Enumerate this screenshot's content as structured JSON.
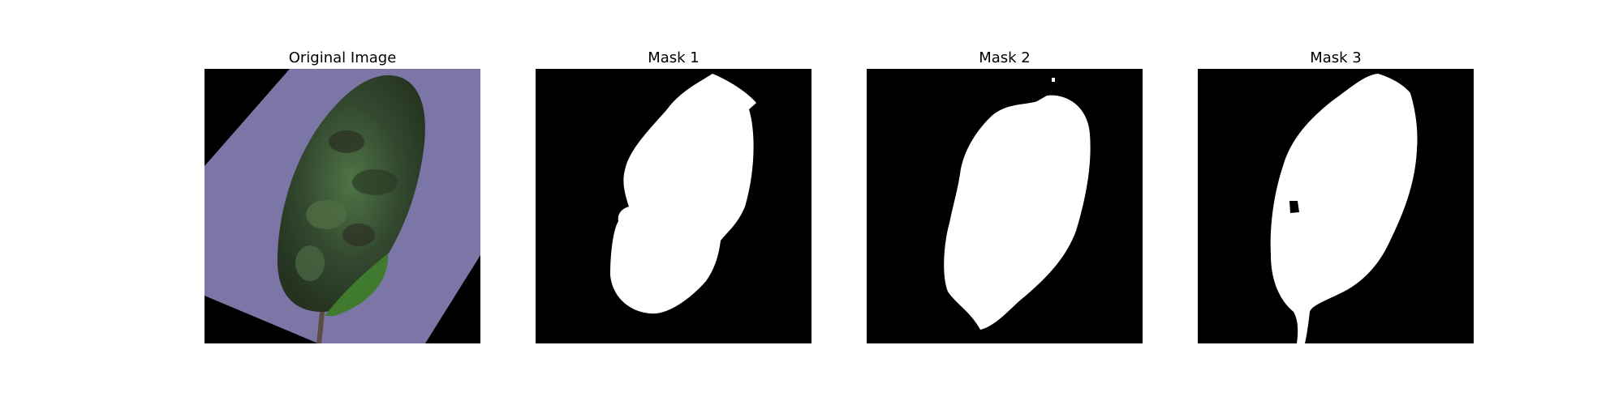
{
  "panels": [
    {
      "title": "Original Image"
    },
    {
      "title": "Mask 1"
    },
    {
      "title": "Mask 2"
    },
    {
      "title": "Mask 3"
    }
  ],
  "colors": {
    "background": "#000000",
    "paper": "#7b76a6",
    "leaf": "#35502f",
    "mask": "#ffffff"
  }
}
